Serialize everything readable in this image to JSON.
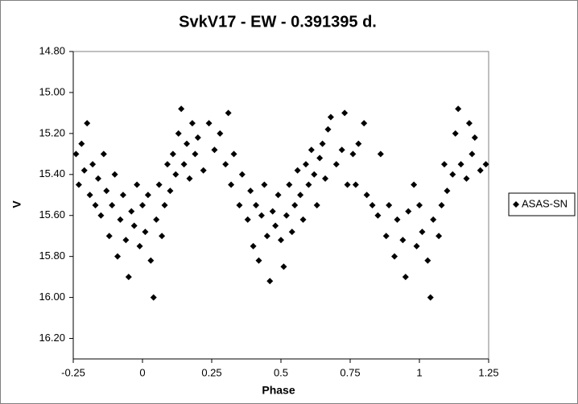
{
  "chart_data": {
    "type": "scatter",
    "title": "SvkV17 - EW - 0.391395 d.",
    "xlabel": "Phase",
    "ylabel": "V",
    "xlim": [
      -0.25,
      1.25
    ],
    "xticks": [
      -0.25,
      0,
      0.25,
      0.5,
      0.75,
      1,
      1.25
    ],
    "ylim": [
      14.8,
      16.3
    ],
    "y_reversed": true,
    "yticks": [
      {
        "value": 14.8,
        "label": "14.80"
      },
      {
        "value": 15.0,
        "label": "15.00"
      },
      {
        "value": 15.2,
        "label": "15.20"
      },
      {
        "value": 15.4,
        "label": "15.40"
      },
      {
        "value": 15.6,
        "label": "15.60"
      },
      {
        "value": 15.8,
        "label": "15.80"
      },
      {
        "value": 16.0,
        "label": "16.00"
      },
      {
        "value": 16.2,
        "label": "16.20"
      }
    ],
    "grid": false,
    "legend": "right",
    "series": [
      {
        "name": "ASAS-SN",
        "color": "#000000",
        "marker": "diamond",
        "x": [
          -0.24,
          -0.23,
          -0.22,
          -0.21,
          -0.2,
          -0.19,
          -0.18,
          -0.17,
          -0.16,
          -0.15,
          -0.14,
          -0.13,
          -0.12,
          -0.11,
          -0.1,
          -0.09,
          -0.08,
          -0.07,
          -0.06,
          -0.05,
          -0.04,
          -0.03,
          -0.02,
          -0.01,
          0.0,
          0.01,
          0.02,
          0.03,
          0.04,
          0.05,
          0.06,
          0.07,
          0.08,
          0.09,
          0.1,
          0.11,
          0.12,
          0.13,
          0.14,
          0.15,
          0.16,
          0.17,
          0.18,
          0.19,
          0.2,
          0.22,
          0.24,
          0.26,
          0.28,
          0.3,
          0.31,
          0.32,
          0.33,
          0.35,
          0.36,
          0.38,
          0.39,
          0.4,
          0.41,
          0.42,
          0.43,
          0.44,
          0.45,
          0.46,
          0.47,
          0.48,
          0.49,
          0.5,
          0.51,
          0.52,
          0.53,
          0.54,
          0.55,
          0.56,
          0.57,
          0.58,
          0.59,
          0.6,
          0.61,
          0.62,
          0.63,
          0.64,
          0.65,
          0.66,
          0.67,
          0.68,
          0.7,
          0.72,
          0.73,
          0.74,
          0.76,
          0.77,
          0.78,
          0.8,
          0.81,
          0.83,
          0.85,
          0.86,
          0.88,
          0.89,
          0.91,
          0.92,
          0.94,
          0.95,
          0.96,
          0.98,
          0.99,
          1.0,
          1.01,
          1.03,
          1.04,
          1.05,
          1.07,
          1.08,
          1.09,
          1.1,
          1.12,
          1.13,
          1.14,
          1.15,
          1.17,
          1.18,
          1.19,
          1.2,
          1.22,
          1.24
        ],
        "values": [
          15.3,
          15.45,
          15.25,
          15.38,
          15.15,
          15.5,
          15.35,
          15.55,
          15.42,
          15.6,
          15.3,
          15.48,
          15.7,
          15.55,
          15.4,
          15.8,
          15.62,
          15.5,
          15.72,
          15.9,
          15.58,
          15.65,
          15.45,
          15.75,
          15.55,
          15.68,
          15.5,
          15.82,
          16.0,
          15.62,
          15.45,
          15.7,
          15.55,
          15.35,
          15.48,
          15.3,
          15.4,
          15.2,
          15.08,
          15.35,
          15.25,
          15.42,
          15.15,
          15.3,
          15.22,
          15.38,
          15.15,
          15.28,
          15.2,
          15.35,
          15.1,
          15.45,
          15.3,
          15.55,
          15.4,
          15.62,
          15.48,
          15.75,
          15.55,
          15.82,
          15.6,
          15.45,
          15.7,
          15.92,
          15.58,
          15.65,
          15.5,
          15.72,
          15.85,
          15.6,
          15.45,
          15.68,
          15.55,
          15.38,
          15.5,
          15.62,
          15.35,
          15.45,
          15.28,
          15.4,
          15.55,
          15.32,
          15.25,
          15.42,
          15.18,
          15.12,
          15.35,
          15.28,
          15.1,
          15.45,
          15.3,
          15.45,
          15.25,
          15.15,
          15.5,
          15.55,
          15.6,
          15.3,
          15.7,
          15.55,
          15.8,
          15.62,
          15.72,
          15.9,
          15.58,
          15.45,
          15.75,
          15.55,
          15.68,
          15.82,
          16.0,
          15.62,
          15.7,
          15.55,
          15.35,
          15.48,
          15.4,
          15.2,
          15.08,
          15.35,
          15.42,
          15.15,
          15.3,
          15.22,
          15.38,
          15.35
        ]
      }
    ]
  }
}
